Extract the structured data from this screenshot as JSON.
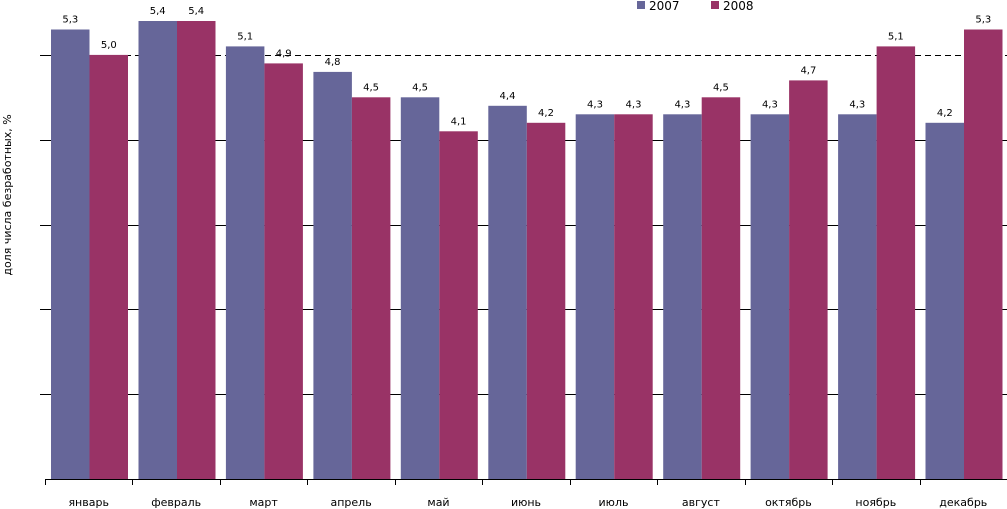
{
  "chart_data": {
    "type": "bar",
    "categories": [
      "январь",
      "февраль",
      "март",
      "апрель",
      "май",
      "июнь",
      "июль",
      "август",
      "октябрь",
      "ноябрь",
      "декабрь"
    ],
    "series": [
      {
        "name": "2007",
        "color": "#666699",
        "values": [
          5.3,
          5.4,
          5.1,
          4.8,
          4.5,
          4.4,
          4.3,
          4.3,
          4.3,
          4.3,
          4.2
        ],
        "labels": [
          "5,3",
          "5,4",
          "5,1",
          "4,8",
          "4,5",
          "4,4",
          "4,3",
          "4,3",
          "4,3",
          "4,3",
          "4,2"
        ]
      },
      {
        "name": "2008",
        "color": "#993366",
        "values": [
          5.0,
          5.4,
          4.9,
          4.5,
          4.1,
          4.2,
          4.3,
          4.5,
          4.7,
          5.1,
          5.3
        ],
        "labels": [
          "5,0",
          "5,4",
          "4,9",
          "4,5",
          "4,1",
          "4,2",
          "4,3",
          "4,5",
          "4,7",
          "5,1",
          "5,3"
        ]
      }
    ],
    "title": "",
    "xlabel": "",
    "ylabel": "доля числа безработных, %",
    "ylim": [
      0,
      5.4
    ],
    "gridlines": [
      1,
      2,
      3,
      4,
      5
    ],
    "dashed_gridline": 5,
    "grid": true,
    "legend_position": "top-right"
  }
}
